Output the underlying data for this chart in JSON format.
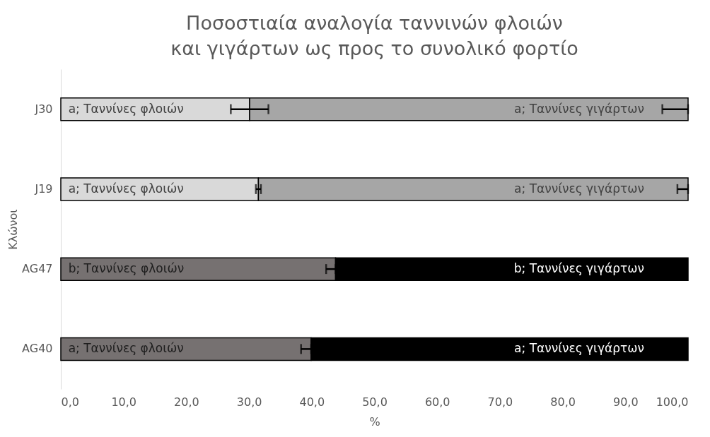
{
  "chart_data": {
    "type": "bar",
    "orientation": "horizontal",
    "stacked": true,
    "title": "Ποσοστιαία αναλογία ταννινών φλοιών και γιγάρτων ως προς το συνολικό φορτίο",
    "xlabel": "%",
    "ylabel": "Κλώνοι",
    "categories": [
      "J30",
      "J19",
      "AG47",
      "AG40"
    ],
    "series": [
      {
        "name": "Ταννίνες φλοιών",
        "colors": [
          "#d9d9d9",
          "#d9d9d9",
          "#767171",
          "#767171"
        ],
        "values": [
          30.1,
          31.5,
          43.8,
          39.9
        ],
        "errors": [
          3.0,
          0.4,
          [
            42.3,
            43.8
          ],
          [
            38.3,
            39.9
          ]
        ],
        "value_labels": [
          "a;",
          "a;",
          "b;",
          "a;"
        ]
      },
      {
        "name": "Ταννίνες γιγάρτων",
        "colors": [
          "#a6a6a6",
          "#a6a6a6",
          "#000000",
          "#000000"
        ],
        "values": [
          69.9,
          68.5,
          56.2,
          60.1
        ],
        "errors": [
          [
            95.9,
            100
          ],
          [
            98.3,
            100
          ],
          null,
          null
        ],
        "value_labels": [
          "a;",
          "a;",
          "b;",
          "a;"
        ]
      }
    ],
    "xlim": [
      0,
      100
    ],
    "xticks": [
      {
        "value": 0,
        "label": "0,0"
      },
      {
        "value": 10,
        "label": "10,0"
      },
      {
        "value": 20,
        "label": "20,0"
      },
      {
        "value": 30,
        "label": "30,0"
      },
      {
        "value": 40,
        "label": "40,0"
      },
      {
        "value": 50,
        "label": "50,0"
      },
      {
        "value": 60,
        "label": "60,0"
      },
      {
        "value": 70,
        "label": "70,0"
      },
      {
        "value": 80,
        "label": "80,0"
      },
      {
        "value": 90,
        "label": "90,0"
      },
      {
        "value": 100,
        "label": "100,0"
      }
    ],
    "grid": false
  }
}
